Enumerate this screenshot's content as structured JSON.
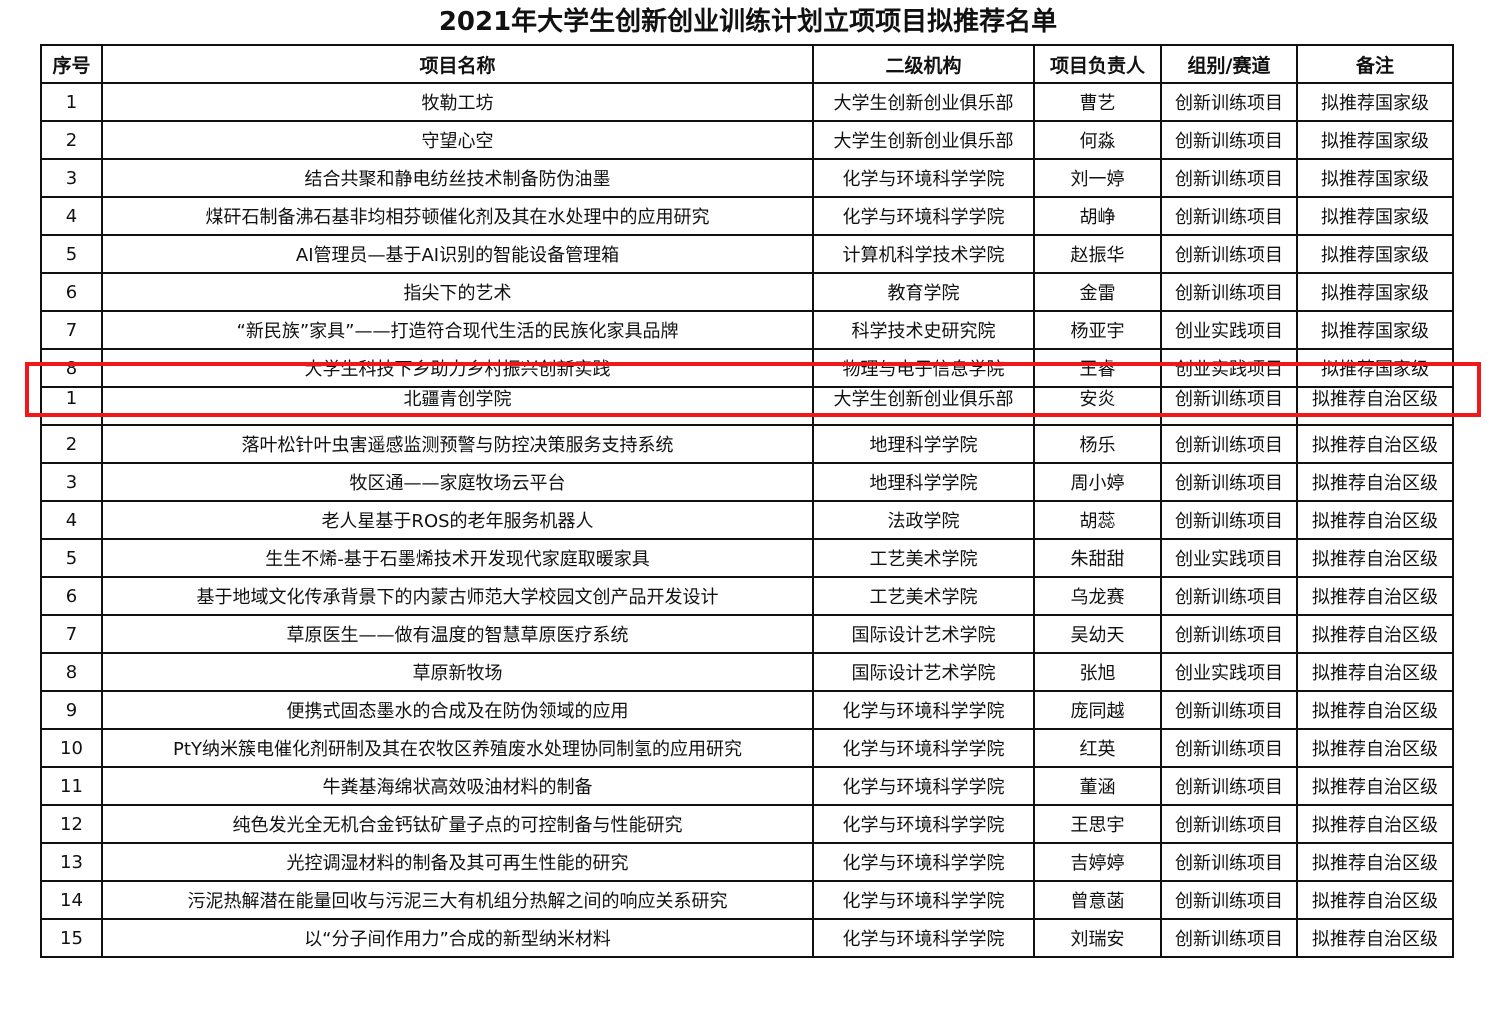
{
  "title": "2021年大学生创新创业训练计划立项项目拟推荐名单",
  "highlight_color": "#f01818",
  "columns": [
    "序号",
    "项目名称",
    "二级机构",
    "项目负责人",
    "组别/赛道",
    "备注"
  ],
  "rows": [
    [
      "1",
      "牧勒工坊",
      "大学生创新创业俱乐部",
      "曹艺",
      "创新训练项目",
      "拟推荐国家级"
    ],
    [
      "2",
      "守望心空",
      "大学生创新创业俱乐部",
      "何淼",
      "创新训练项目",
      "拟推荐国家级"
    ],
    [
      "3",
      "结合共聚和静电纺丝技术制备防伪油墨",
      "化学与环境科学学院",
      "刘一婷",
      "创新训练项目",
      "拟推荐国家级"
    ],
    [
      "4",
      "煤矸石制备沸石基非均相芬顿催化剂及其在水处理中的应用研究",
      "化学与环境科学学院",
      "胡峥",
      "创新训练项目",
      "拟推荐国家级"
    ],
    [
      "5",
      "AI管理员—基于AI识别的智能设备管理箱",
      "计算机科学技术学院",
      "赵振华",
      "创新训练项目",
      "拟推荐国家级"
    ],
    [
      "6",
      "指尖下的艺术",
      "教育学院",
      "金雷",
      "创新训练项目",
      "拟推荐国家级"
    ],
    [
      "7",
      "“新民族”家具”——打造符合现代生活的民族化家具品牌",
      "科学技术史研究院",
      "杨亚宇",
      "创业实践项目",
      "拟推荐国家级"
    ],
    [
      "8",
      "大学生科技下乡助力乡村振兴创新实践",
      "物理与电子信息学院",
      "王睿",
      "创业实践项目",
      "拟推荐国家级"
    ],
    [
      "1",
      "北疆青创学院",
      "大学生创新创业俱乐部",
      "安炎",
      "创新训练项目",
      "拟推荐自治区级"
    ],
    [
      "2",
      "落叶松针叶虫害遥感监测预警与防控决策服务支持系统",
      "地理科学学院",
      "杨乐",
      "创新训练项目",
      "拟推荐自治区级"
    ],
    [
      "3",
      "牧区通——家庭牧场云平台",
      "地理科学学院",
      "周小婷",
      "创新训练项目",
      "拟推荐自治区级"
    ],
    [
      "4",
      "老人星基于ROS的老年服务机器人",
      "法政学院",
      "胡蕊",
      "创新训练项目",
      "拟推荐自治区级"
    ],
    [
      "5",
      "生生不烯-基于石墨烯技术开发现代家庭取暖家具",
      "工艺美术学院",
      "朱甜甜",
      "创业实践项目",
      "拟推荐自治区级"
    ],
    [
      "6",
      "基于地域文化传承背景下的内蒙古师范大学校园文创产品开发设计",
      "工艺美术学院",
      "乌龙赛",
      "创新训练项目",
      "拟推荐自治区级"
    ],
    [
      "7",
      "草原医生——做有温度的智慧草原医疗系统",
      "国际设计艺术学院",
      "吴幼天",
      "创新训练项目",
      "拟推荐自治区级"
    ],
    [
      "8",
      "草原新牧场",
      "国际设计艺术学院",
      "张旭",
      "创业实践项目",
      "拟推荐自治区级"
    ],
    [
      "9",
      "便携式固态墨水的合成及在防伪领域的应用",
      "化学与环境科学学院",
      "庞同越",
      "创新训练项目",
      "拟推荐自治区级"
    ],
    [
      "10",
      "PtY纳米簇电催化剂研制及其在农牧区养殖废水处理协同制氢的应用研究",
      "化学与环境科学学院",
      "红英",
      "创新训练项目",
      "拟推荐自治区级"
    ],
    [
      "11",
      "牛粪基海绵状高效吸油材料的制备",
      "化学与环境科学学院",
      "董涵",
      "创新训练项目",
      "拟推荐自治区级"
    ],
    [
      "12",
      "纯色发光全无机合金钙钛矿量子点的可控制备与性能研究",
      "化学与环境科学学院",
      "王思宇",
      "创新训练项目",
      "拟推荐自治区级"
    ],
    [
      "13",
      "光控调湿材料的制备及其可再生性能的研究",
      "化学与环境科学学院",
      "吉婷婷",
      "创新训练项目",
      "拟推荐自治区级"
    ],
    [
      "14",
      "污泥热解潜在能量回收与污泥三大有机组分热解之间的响应关系研究",
      "化学与环境科学学院",
      "曾意菡",
      "创新训练项目",
      "拟推荐自治区级"
    ],
    [
      "15",
      "以“分子间作用力”合成的新型纳米材料",
      "化学与环境科学学院",
      "刘瑞安",
      "创新训练项目",
      "拟推荐自治区级"
    ]
  ]
}
